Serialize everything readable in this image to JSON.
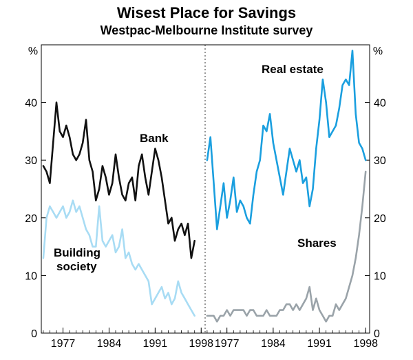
{
  "chart_data": {
    "type": "line",
    "title": "Wisest Place for Savings",
    "subtitle": "Westpac-Melbourne Institute survey",
    "unit_left": "%",
    "unit_right": "%",
    "ylim": [
      0,
      50
    ],
    "y_ticks": [
      0,
      10,
      20,
      30,
      40
    ],
    "grid": false,
    "panels": [
      {
        "name": "left",
        "xlim": [
          1973.7,
          1998.6
        ],
        "x_ticks": [
          "1977",
          "1984",
          "1991",
          "1998"
        ],
        "series": [
          {
            "name": "Bank",
            "color": "#111111",
            "x": [
              1974.0,
              1974.5,
              1975.0,
              1975.5,
              1976.0,
              1976.5,
              1977.0,
              1977.5,
              1978.0,
              1978.5,
              1979.0,
              1979.5,
              1980.0,
              1980.5,
              1981.0,
              1981.5,
              1982.0,
              1982.5,
              1983.0,
              1983.5,
              1984.0,
              1984.5,
              1985.0,
              1985.5,
              1986.0,
              1986.5,
              1987.0,
              1987.5,
              1988.0,
              1988.5,
              1989.0,
              1989.5,
              1990.0,
              1990.5,
              1991.0,
              1991.5,
              1992.0,
              1992.5,
              1993.0,
              1993.5,
              1994.0,
              1994.5,
              1995.0,
              1995.5,
              1996.0,
              1996.5,
              1997.0
            ],
            "values": [
              29,
              28,
              26,
              33,
              40,
              35,
              34,
              36,
              34,
              31,
              30,
              31,
              33,
              37,
              30,
              28,
              23,
              25,
              29,
              27,
              24,
              26,
              31,
              27,
              24,
              23,
              26,
              27,
              23,
              29,
              31,
              27,
              24,
              28,
              32,
              30,
              27,
              23,
              19,
              20,
              16,
              18,
              19,
              17,
              19,
              13,
              16
            ]
          },
          {
            "name": "Building society",
            "color": "#a8dcf4",
            "x": [
              1974.0,
              1974.5,
              1975.0,
              1975.5,
              1976.0,
              1976.5,
              1977.0,
              1977.5,
              1978.0,
              1978.5,
              1979.0,
              1979.5,
              1980.0,
              1980.5,
              1981.0,
              1981.5,
              1982.0,
              1982.5,
              1983.0,
              1983.5,
              1984.0,
              1984.5,
              1985.0,
              1985.5,
              1986.0,
              1986.5,
              1987.0,
              1987.5,
              1988.0,
              1988.5,
              1989.0,
              1989.5,
              1990.0,
              1990.5,
              1991.0,
              1991.5,
              1992.0,
              1992.5,
              1993.0,
              1993.5,
              1994.0,
              1994.5,
              1995.0,
              1995.5,
              1996.0,
              1996.5,
              1997.0
            ],
            "values": [
              13,
              20,
              22,
              21,
              20,
              21,
              22,
              20,
              21,
              23,
              21,
              22,
              20,
              18,
              17,
              15,
              15,
              22,
              16,
              15,
              16,
              17,
              14,
              15,
              18,
              13,
              14,
              12,
              11,
              12,
              11,
              10,
              9,
              5,
              6,
              7,
              8,
              6,
              7,
              5,
              6,
              9,
              7,
              6,
              5,
              4,
              3
            ]
          }
        ]
      },
      {
        "name": "right",
        "xlim": [
          1973.7,
          1998.6
        ],
        "x_ticks": [
          "1977",
          "1984",
          "1991",
          "1998"
        ],
        "series": [
          {
            "name": "Real estate",
            "color": "#1a9fdf",
            "x": [
              1974.0,
              1974.5,
              1975.0,
              1975.5,
              1976.0,
              1976.5,
              1977.0,
              1977.5,
              1978.0,
              1978.5,
              1979.0,
              1979.5,
              1980.0,
              1980.5,
              1981.0,
              1981.5,
              1982.0,
              1982.5,
              1983.0,
              1983.5,
              1984.0,
              1984.5,
              1985.0,
              1985.5,
              1986.0,
              1986.5,
              1987.0,
              1987.5,
              1988.0,
              1988.5,
              1989.0,
              1989.5,
              1990.0,
              1990.5,
              1991.0,
              1991.5,
              1992.0,
              1992.5,
              1993.0,
              1993.5,
              1994.0,
              1994.5,
              1995.0,
              1995.5,
              1996.0,
              1996.5,
              1997.0,
              1997.5,
              1998.0
            ],
            "values": [
              30,
              34,
              26,
              18,
              22,
              26,
              20,
              23,
              27,
              21,
              23,
              22,
              20,
              19,
              24,
              28,
              30,
              36,
              35,
              38,
              33,
              30,
              27,
              24,
              28,
              32,
              30,
              28,
              30,
              26,
              27,
              22,
              25,
              32,
              37,
              44,
              40,
              34,
              35,
              36,
              39,
              43,
              44,
              43,
              49,
              38,
              33,
              32,
              30
            ]
          },
          {
            "name": "Shares",
            "color": "#9aa3a9",
            "x": [
              1974.0,
              1974.5,
              1975.0,
              1975.5,
              1976.0,
              1976.5,
              1977.0,
              1977.5,
              1978.0,
              1978.5,
              1979.0,
              1979.5,
              1980.0,
              1980.5,
              1981.0,
              1981.5,
              1982.0,
              1982.5,
              1983.0,
              1983.5,
              1984.0,
              1984.5,
              1985.0,
              1985.5,
              1986.0,
              1986.5,
              1987.0,
              1987.5,
              1988.0,
              1988.5,
              1989.0,
              1989.5,
              1990.0,
              1990.5,
              1991.0,
              1991.5,
              1992.0,
              1992.5,
              1993.0,
              1993.5,
              1994.0,
              1994.5,
              1995.0,
              1995.5,
              1996.0,
              1996.5,
              1997.0,
              1997.5,
              1998.0
            ],
            "values": [
              3,
              3,
              3,
              2,
              3,
              3,
              4,
              3,
              4,
              4,
              4,
              4,
              3,
              4,
              4,
              3,
              3,
              3,
              4,
              3,
              3,
              3,
              4,
              4,
              5,
              5,
              4,
              5,
              4,
              5,
              6,
              8,
              4,
              6,
              4,
              3,
              2,
              3,
              3,
              5,
              4,
              5,
              6,
              8,
              10,
              13,
              17,
              22,
              28
            ]
          }
        ]
      }
    ],
    "annotations": [
      {
        "text": "Bank",
        "series": "Bank"
      },
      {
        "text": "Building",
        "series": "Building society"
      },
      {
        "text": "society",
        "series": "Building society"
      },
      {
        "text": "Real estate",
        "series": "Real estate"
      },
      {
        "text": "Shares",
        "series": "Shares"
      }
    ]
  }
}
